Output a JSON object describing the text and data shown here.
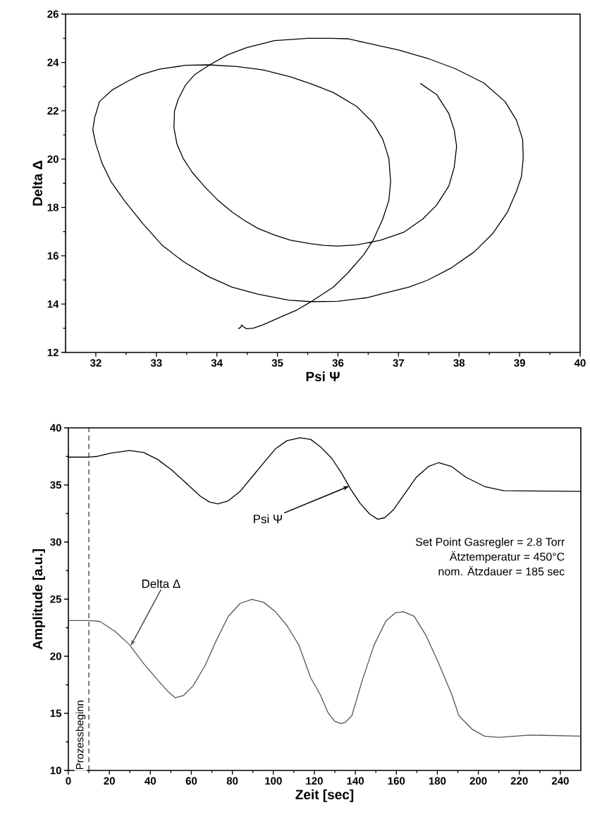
{
  "chart_data": [
    {
      "type": "line",
      "xlabel": "Psi Ψ",
      "ylabel": "Delta Δ",
      "xlim": [
        31.5,
        40
      ],
      "ylim": [
        12,
        26
      ],
      "xticks": [
        32,
        33,
        34,
        35,
        36,
        37,
        38,
        39,
        40
      ],
      "yticks": [
        12,
        14,
        16,
        18,
        20,
        22,
        24,
        26
      ],
      "series": [
        {
          "color": "#000000",
          "x": [
            37.36,
            37.63,
            37.83,
            37.92,
            37.96,
            37.92,
            37.83,
            37.63,
            37.4,
            37.09,
            36.7,
            36.31,
            36.0,
            35.77,
            35.54,
            35.22,
            34.95,
            34.68,
            34.45,
            34.25,
            34.02,
            33.79,
            33.59,
            33.44,
            33.34,
            33.29,
            33.3,
            33.36,
            33.48,
            33.63,
            33.9,
            34.18,
            34.49,
            34.95,
            35.5,
            35.89,
            36.16,
            36.47,
            37.01,
            37.48,
            37.94,
            38.41,
            38.76,
            38.95,
            39.05,
            39.06,
            39.03,
            38.95,
            38.8,
            38.56,
            38.25,
            37.86,
            37.48,
            37.17,
            36.78,
            36.47,
            36.0,
            35.57,
            35.19,
            34.68,
            34.25,
            33.86,
            33.44,
            33.09,
            32.78,
            32.47,
            32.25,
            32.1,
            32.0,
            31.95,
            31.98,
            32.06,
            32.27,
            32.51,
            32.74,
            33.05,
            33.48,
            33.86,
            34.33,
            34.76,
            35.22,
            35.57,
            35.92,
            36.31,
            36.58,
            36.74,
            36.84,
            36.87,
            36.84,
            36.74,
            36.58,
            36.43,
            36.16,
            35.92,
            35.57,
            35.3,
            35.03,
            34.76,
            34.6,
            34.49,
            34.43,
            34.41,
            34.39,
            34.35
          ],
          "values": [
            23.13,
            22.67,
            21.89,
            21.21,
            20.53,
            19.66,
            18.88,
            18.1,
            17.52,
            16.98,
            16.64,
            16.45,
            16.4,
            16.43,
            16.5,
            16.64,
            16.86,
            17.13,
            17.47,
            17.81,
            18.29,
            18.88,
            19.46,
            20.04,
            20.63,
            21.31,
            21.99,
            22.47,
            23.06,
            23.49,
            23.93,
            24.32,
            24.61,
            24.9,
            25.0,
            25.0,
            24.98,
            24.81,
            24.51,
            24.17,
            23.74,
            23.15,
            22.38,
            21.6,
            20.82,
            20.04,
            19.27,
            18.68,
            17.81,
            16.93,
            16.16,
            15.48,
            14.99,
            14.7,
            14.46,
            14.26,
            14.12,
            14.1,
            14.16,
            14.41,
            14.7,
            15.14,
            15.77,
            16.45,
            17.32,
            18.29,
            19.07,
            19.85,
            20.63,
            21.21,
            21.7,
            22.38,
            22.86,
            23.2,
            23.49,
            23.72,
            23.88,
            23.9,
            23.83,
            23.69,
            23.4,
            23.1,
            22.76,
            22.18,
            21.5,
            20.82,
            20.04,
            19.07,
            18.29,
            17.52,
            16.64,
            16.06,
            15.28,
            14.7,
            14.12,
            13.73,
            13.44,
            13.14,
            13.0,
            12.98,
            13.08,
            13.14,
            13.03,
            12.98
          ]
        }
      ]
    },
    {
      "type": "line",
      "xlabel": "Zeit [sec]",
      "ylabel": "Amplitude [a.u.]",
      "xlim": [
        0,
        250
      ],
      "ylim": [
        10,
        40
      ],
      "xticks": [
        0,
        20,
        40,
        60,
        80,
        100,
        120,
        140,
        160,
        180,
        200,
        220,
        240
      ],
      "yticks": [
        10,
        15,
        20,
        25,
        30,
        35,
        40
      ],
      "series": [
        {
          "color": "#000000",
          "x": [
            0,
            10.3,
            13.8,
            20.7,
            29.8,
            36.7,
            43.6,
            50.5,
            57.4,
            64.3,
            68.8,
            72.9,
            78.0,
            83.8,
            89.5,
            95.2,
            101.0,
            106.7,
            113.0,
            118.2,
            122.8,
            128.5,
            133.1,
            137.7,
            142.3,
            146.9,
            150.9,
            154.3,
            158.4,
            164.1,
            169.8,
            175.6,
            180.7,
            187.0,
            193.9,
            203.1,
            212.3,
            250
          ],
          "values": [
            37.44,
            37.44,
            37.5,
            37.79,
            38.02,
            37.85,
            37.23,
            36.3,
            35.17,
            34.03,
            33.51,
            33.34,
            33.61,
            34.44,
            35.68,
            36.92,
            38.16,
            38.88,
            39.13,
            38.99,
            38.37,
            37.33,
            36.09,
            34.64,
            33.4,
            32.47,
            32.0,
            32.13,
            32.79,
            34.24,
            35.68,
            36.61,
            36.96,
            36.61,
            35.68,
            34.86,
            34.5,
            34.44
          ]
        },
        {
          "color": "#555555",
          "x": [
            0,
            10.3,
            15.5,
            23.0,
            29.8,
            36.7,
            43.6,
            48.2,
            52.2,
            56.2,
            60.8,
            66.6,
            72.3,
            78.0,
            83.8,
            89.5,
            95.2,
            101.0,
            106.7,
            112.4,
            118.2,
            122.8,
            126.8,
            130,
            133,
            135,
            138.3,
            143.4,
            149.2,
            154.9,
            159.5,
            163.5,
            168.7,
            174.4,
            180.2,
            187.0,
            190.5,
            197,
            203,
            210,
            225,
            250
          ],
          "values": [
            23.12,
            23.12,
            23.04,
            22.15,
            21.01,
            19.36,
            17.91,
            16.98,
            16.36,
            16.57,
            17.4,
            19.15,
            21.43,
            23.49,
            24.63,
            24.98,
            24.73,
            23.9,
            22.67,
            21.0,
            18.12,
            16.67,
            15.02,
            14.3,
            14.1,
            14.2,
            14.8,
            17.91,
            21.01,
            23.08,
            23.8,
            23.9,
            23.49,
            21.84,
            19.57,
            16.67,
            14.8,
            13.6,
            13.0,
            12.9,
            13.1,
            13.0
          ]
        }
      ],
      "ref_lines": [
        {
          "axis": "x",
          "value": 10,
          "label": "Prozessbeginn",
          "line_style": "dashed",
          "color": "#000000"
        }
      ],
      "annotations": [
        {
          "text": "Psi Ψ",
          "x": 137,
          "y": 34.9
        },
        {
          "text": "Delta Δ",
          "x": 30.4,
          "y": 20.9
        },
        "Set Point Gasregler = 2.8 Torr",
        "Ätztemperatur = 450°C",
        "nom. Ätzdauer = 185 sec"
      ]
    }
  ]
}
